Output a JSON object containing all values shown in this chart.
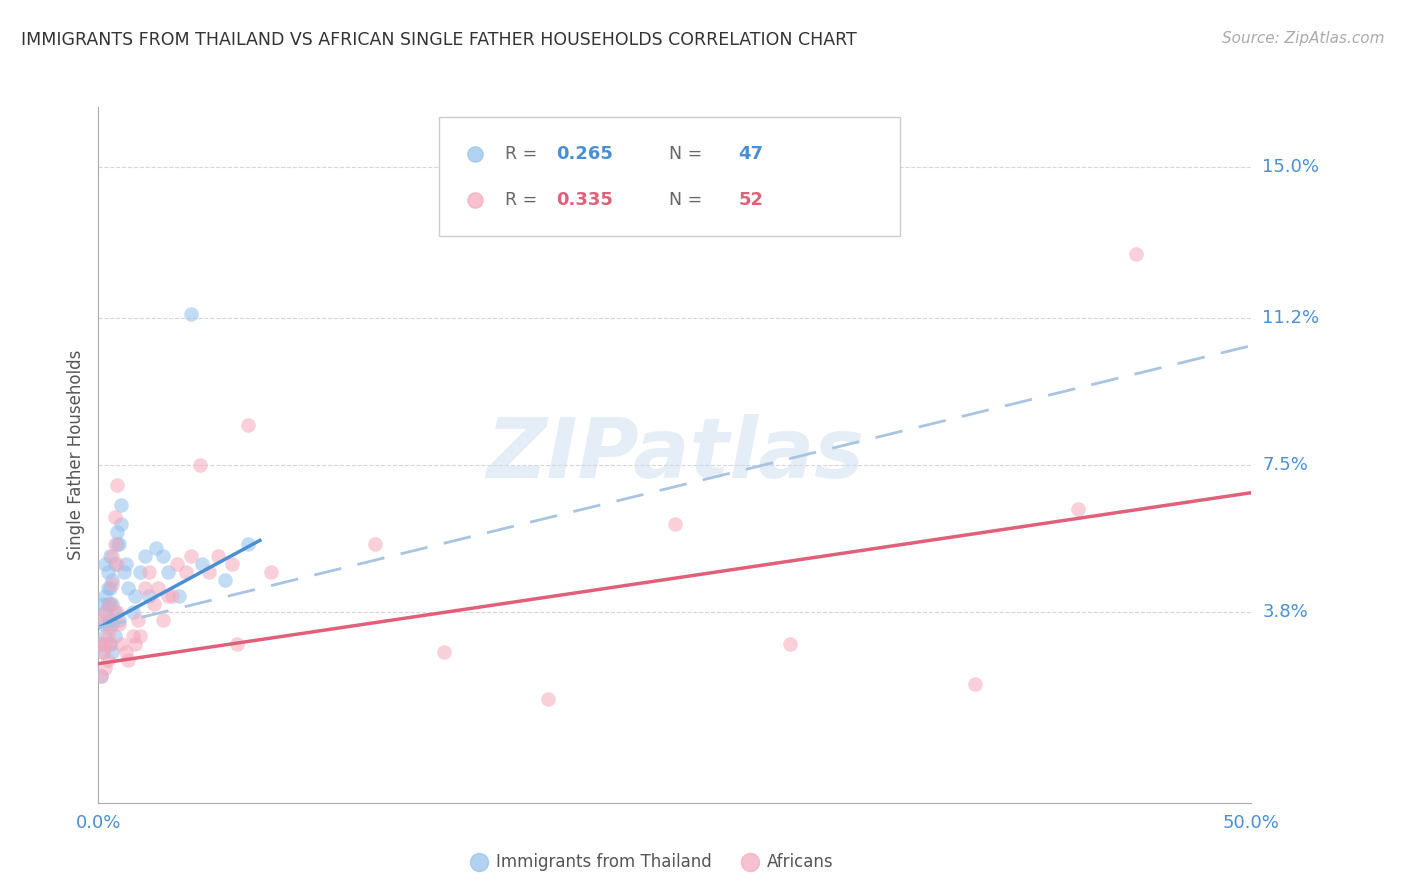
{
  "title": "IMMIGRANTS FROM THAILAND VS AFRICAN SINGLE FATHER HOUSEHOLDS CORRELATION CHART",
  "source": "Source: ZipAtlas.com",
  "ylabel": "Single Father Households",
  "watermark": "ZIPatlas",
  "xlim": [
    0.0,
    0.5
  ],
  "ylim": [
    -0.01,
    0.165
  ],
  "xtick_values": [
    0.0,
    0.5
  ],
  "xtick_labels": [
    "0.0%",
    "50.0%"
  ],
  "ytick_labels": [
    "15.0%",
    "11.2%",
    "7.5%",
    "3.8%"
  ],
  "ytick_values": [
    0.15,
    0.112,
    0.075,
    0.038
  ],
  "blue_color": "#92c0ed",
  "pink_color": "#f5a8bc",
  "blue_line_color": "#4a8fd4",
  "pink_line_color": "#e0607a",
  "dashed_line_color": "#a8c4e0",
  "title_color": "#333333",
  "axis_label_color": "#555555",
  "ytick_color": "#4a8fd4",
  "xtick_color": "#4a8fd4",
  "grid_color": "#cccccc",
  "legend_blue_label": "Immigrants from Thailand",
  "legend_pink_label": "Africans",
  "blue_R": "0.265",
  "blue_N": "47",
  "pink_R": "0.335",
  "pink_N": "52",
  "blue_line_x0": 0.0,
  "blue_line_y0": 0.034,
  "blue_line_x1": 0.07,
  "blue_line_y1": 0.056,
  "dashed_line_x0": 0.0,
  "dashed_line_y0": 0.034,
  "dashed_line_x1": 0.5,
  "dashed_line_y1": 0.105,
  "pink_line_x0": 0.0,
  "pink_line_y0": 0.025,
  "pink_line_x1": 0.5,
  "pink_line_y1": 0.068,
  "blue_scatter_x": [
    0.001,
    0.001,
    0.002,
    0.002,
    0.002,
    0.003,
    0.003,
    0.003,
    0.003,
    0.004,
    0.004,
    0.004,
    0.004,
    0.005,
    0.005,
    0.005,
    0.005,
    0.005,
    0.006,
    0.006,
    0.006,
    0.006,
    0.007,
    0.007,
    0.007,
    0.008,
    0.008,
    0.009,
    0.009,
    0.01,
    0.01,
    0.011,
    0.012,
    0.013,
    0.015,
    0.016,
    0.018,
    0.02,
    0.022,
    0.025,
    0.028,
    0.03,
    0.035,
    0.04,
    0.045,
    0.055,
    0.065
  ],
  "blue_scatter_y": [
    0.03,
    0.022,
    0.035,
    0.028,
    0.04,
    0.032,
    0.038,
    0.042,
    0.05,
    0.035,
    0.04,
    0.044,
    0.048,
    0.03,
    0.036,
    0.04,
    0.044,
    0.052,
    0.028,
    0.035,
    0.04,
    0.046,
    0.032,
    0.038,
    0.05,
    0.055,
    0.058,
    0.036,
    0.055,
    0.06,
    0.065,
    0.048,
    0.05,
    0.044,
    0.038,
    0.042,
    0.048,
    0.052,
    0.042,
    0.054,
    0.052,
    0.048,
    0.042,
    0.113,
    0.05,
    0.046,
    0.055
  ],
  "pink_scatter_x": [
    0.001,
    0.001,
    0.002,
    0.002,
    0.003,
    0.003,
    0.003,
    0.004,
    0.004,
    0.005,
    0.005,
    0.005,
    0.006,
    0.006,
    0.007,
    0.007,
    0.008,
    0.008,
    0.008,
    0.009,
    0.01,
    0.012,
    0.013,
    0.015,
    0.016,
    0.017,
    0.018,
    0.02,
    0.022,
    0.024,
    0.026,
    0.028,
    0.03,
    0.032,
    0.034,
    0.038,
    0.04,
    0.044,
    0.048,
    0.052,
    0.058,
    0.06,
    0.065,
    0.075,
    0.12,
    0.15,
    0.195,
    0.25,
    0.3,
    0.38,
    0.425,
    0.45
  ],
  "pink_scatter_y": [
    0.03,
    0.022,
    0.036,
    0.028,
    0.024,
    0.03,
    0.038,
    0.032,
    0.026,
    0.034,
    0.03,
    0.04,
    0.045,
    0.052,
    0.055,
    0.062,
    0.05,
    0.038,
    0.07,
    0.035,
    0.03,
    0.028,
    0.026,
    0.032,
    0.03,
    0.036,
    0.032,
    0.044,
    0.048,
    0.04,
    0.044,
    0.036,
    0.042,
    0.042,
    0.05,
    0.048,
    0.052,
    0.075,
    0.048,
    0.052,
    0.05,
    0.03,
    0.085,
    0.048,
    0.055,
    0.028,
    0.016,
    0.06,
    0.03,
    0.02,
    0.064,
    0.128
  ]
}
